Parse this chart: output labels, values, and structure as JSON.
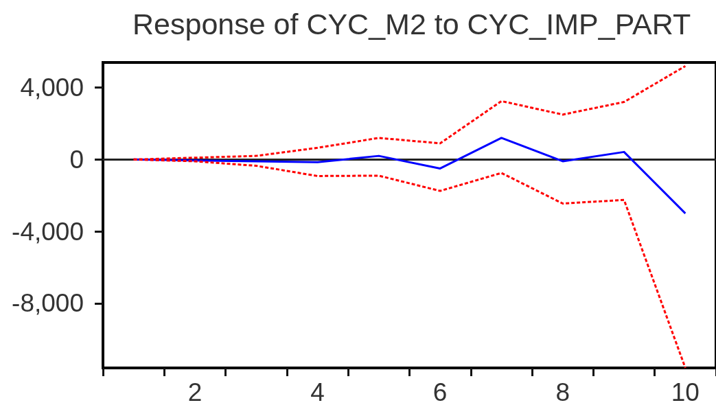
{
  "chart_data": {
    "type": "line",
    "title": "Response of CYC_M2 to CYC_IMP_PART",
    "categories": [
      null,
      "2",
      null,
      "4",
      null,
      "6",
      null,
      "8",
      null,
      "10"
    ],
    "series": [
      {
        "color": "#0000ff",
        "line_style": "solid",
        "values": [
          0,
          -50,
          -100,
          -150,
          200,
          -500,
          1200,
          -100,
          420,
          -3000
        ]
      },
      {
        "color": "#ff0000",
        "line_style": "dashed",
        "values": [
          0,
          100,
          200,
          650,
          1200,
          900,
          3250,
          2500,
          3200,
          5200
        ]
      },
      {
        "color": "#ff0000",
        "line_style": "dashed",
        "values": [
          0,
          -100,
          -350,
          -920,
          -900,
          -1750,
          -750,
          -2450,
          -2250,
          -11600
        ]
      }
    ],
    "ylim": [
      -11600,
      5400
    ],
    "yticks": [
      {
        "value": -8000,
        "label": "-8,000"
      },
      {
        "value": -4000,
        "label": "-4,000"
      },
      0,
      {
        "value": 4000,
        "label": "4,000"
      }
    ],
    "ref_lines": [
      {
        "axis": "y",
        "value": 0,
        "color": "#222222"
      }
    ],
    "marker": "none"
  }
}
